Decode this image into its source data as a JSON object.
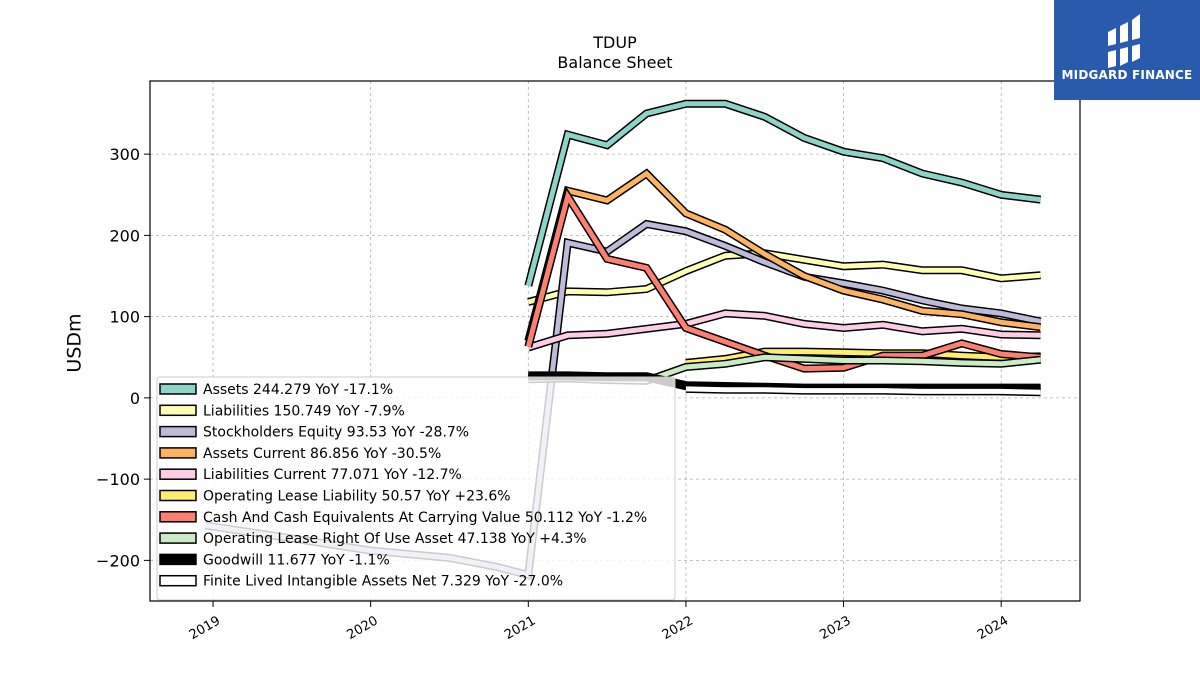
{
  "brand": {
    "name": "MIDGARD FINANCE",
    "bg_color": "#2a5aab"
  },
  "chart_data": {
    "type": "line",
    "title": "TDUP",
    "subtitle": "Balance  Sheet",
    "ylabel": "USDm",
    "xlabel": "",
    "ylim": [
      -250,
      390
    ],
    "xlim": [
      2018.6,
      2024.5
    ],
    "yticks": [
      -200,
      -100,
      0,
      100,
      200,
      300
    ],
    "ytick_labels": [
      "−200",
      "−100",
      "0",
      "100",
      "200",
      "300"
    ],
    "xticks": [
      2019,
      2020,
      2021,
      2022,
      2023,
      2024
    ],
    "xtick_labels": [
      "2019",
      "2020",
      "2021",
      "2022",
      "2023",
      "2024"
    ],
    "grid": true,
    "legend_position": "lower-left",
    "series": [
      {
        "name": "Assets",
        "legend": "Assets  244.279 YoY -17.1%",
        "color": "#8dd3c7",
        "width": 5,
        "x": [
          2021.0,
          2021.25,
          2021.5,
          2021.75,
          2022.0,
          2022.25,
          2022.5,
          2022.75,
          2023.0,
          2023.25,
          2023.5,
          2023.75,
          2024.0,
          2024.25
        ],
        "y": [
          138,
          324,
          311,
          350,
          362,
          362,
          346,
          320,
          303,
          295,
          276,
          265,
          250,
          244
        ]
      },
      {
        "name": "Liabilities",
        "legend": "Liabilities  150.749 YoY -7.9%",
        "color": "#ffffb3",
        "width": 5,
        "x": [
          2021.0,
          2021.25,
          2021.5,
          2021.75,
          2022.0,
          2022.25,
          2022.5,
          2022.75,
          2023.0,
          2023.25,
          2023.5,
          2023.75,
          2024.0,
          2024.25
        ],
        "y": [
          118,
          131,
          130,
          134,
          156,
          175,
          178,
          170,
          162,
          164,
          157,
          157,
          147,
          151
        ]
      },
      {
        "name": "Stockholders Equity",
        "legend": "Stockholders Equity  93.53 YoY -28.7%",
        "color": "#bebada",
        "width": 5,
        "x": [
          2018.95,
          2019.5,
          2020.0,
          2020.5,
          2020.8,
          2021.0,
          2021.25,
          2021.5,
          2021.75,
          2022.0,
          2022.25,
          2022.5,
          2022.75,
          2023.0,
          2023.25,
          2023.5,
          2023.75,
          2024.0,
          2024.25
        ],
        "y": [
          -157,
          -173,
          -188,
          -197,
          -208,
          -218,
          191,
          180,
          214,
          205,
          187,
          167,
          149,
          141,
          132,
          120,
          110,
          104,
          94
        ]
      },
      {
        "name": "Assets Current",
        "legend": "Assets Current  86.856 YoY -30.5%",
        "color": "#fdb462",
        "width": 5,
        "x": [
          2021.0,
          2021.25,
          2021.5,
          2021.75,
          2022.0,
          2022.25,
          2022.5,
          2022.75,
          2023.0,
          2023.25,
          2023.5,
          2023.75,
          2024.0,
          2024.25
        ],
        "y": [
          70,
          255,
          243,
          276,
          227,
          207,
          177,
          150,
          132,
          121,
          107,
          103,
          93,
          87
        ]
      },
      {
        "name": "Liabilities Current",
        "legend": "Liabilities Current  77.071 YoY -12.7%",
        "color": "#fccde5",
        "width": 5,
        "x": [
          2021.0,
          2021.25,
          2021.5,
          2021.75,
          2022.0,
          2022.25,
          2022.5,
          2022.75,
          2023.0,
          2023.25,
          2023.5,
          2023.75,
          2024.0,
          2024.25
        ],
        "y": [
          62,
          77,
          79,
          85,
          91,
          104,
          101,
          91,
          86,
          90,
          82,
          85,
          78,
          77
        ]
      },
      {
        "name": "Operating Lease Liability",
        "legend": "Operating Lease Liability  50.57 YoY +23.6%",
        "color": "#ffed6f",
        "width": 5,
        "x": [
          2022.0,
          2022.25,
          2022.5,
          2022.75,
          2023.0,
          2023.25,
          2023.5,
          2023.75,
          2024.0,
          2024.25
        ],
        "y": [
          43,
          48,
          57,
          57,
          56,
          55,
          55,
          52,
          50,
          51
        ]
      },
      {
        "name": "Cash And Cash Equivalents At Carrying Value",
        "legend": "Cash And Cash Equivalents At Carrying Value  50.112 YoY -1.2%",
        "color": "#fb8072",
        "width": 5,
        "x": [
          2021.0,
          2021.25,
          2021.5,
          2021.75,
          2022.0,
          2022.25,
          2022.5,
          2022.75,
          2023.0,
          2023.25,
          2023.5,
          2023.75,
          2024.0,
          2024.25
        ],
        "y": [
          63,
          248,
          171,
          160,
          86,
          69,
          52,
          36,
          37,
          52,
          52,
          67,
          54,
          50
        ]
      },
      {
        "name": "Operating Lease Right Of Use Asset",
        "legend": "Operating Lease Right Of Use Asset  47.138 YoY +4.3%",
        "color": "#ccebc5",
        "width": 5,
        "x": [
          2021.0,
          2021.25,
          2021.5,
          2021.75,
          2022.0,
          2022.25,
          2022.5,
          2022.75,
          2023.0,
          2023.25,
          2023.5,
          2023.75,
          2024.0,
          2024.25
        ],
        "y": [
          23,
          24,
          22,
          21,
          38,
          42,
          50,
          48,
          46,
          46,
          45,
          43,
          42,
          47
        ]
      },
      {
        "name": "Goodwill",
        "legend": "Goodwill  11.677 YoY -1.1%",
        "color": "#000000",
        "width": 6,
        "x": [
          2021.0,
          2021.25,
          2021.5,
          2021.75,
          2022.0,
          2022.25,
          2022.5,
          2022.75,
          2023.0,
          2023.25,
          2023.5,
          2023.75,
          2024.0,
          2024.25
        ],
        "y": [
          27,
          27,
          26,
          26,
          15,
          14,
          13,
          12,
          12,
          12,
          12,
          12,
          12,
          12
        ]
      },
      {
        "name": "Finite Lived Intangible Assets Net",
        "legend": "Finite Lived Intangible Assets Net  7.329 YoY -27.0%",
        "color": "#ffffff",
        "width": 5,
        "x": [
          2022.0,
          2022.25,
          2022.5,
          2022.75,
          2023.0,
          2023.25,
          2023.5,
          2023.75,
          2024.0,
          2024.25
        ],
        "y": [
          11,
          10,
          10,
          9,
          9,
          9,
          8,
          8,
          8,
          7
        ]
      }
    ]
  }
}
